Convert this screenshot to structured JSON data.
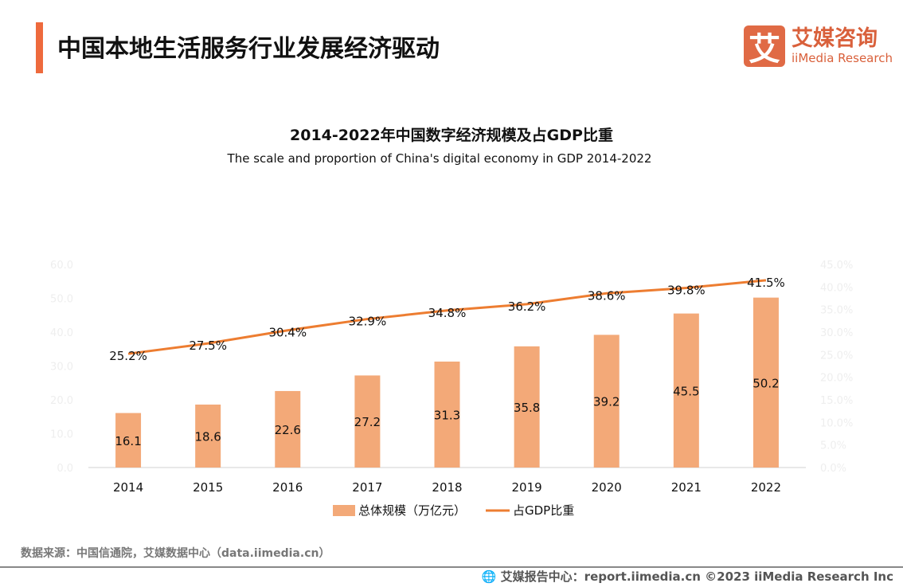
{
  "header": {
    "title": "中国本地生活服务行业发展经济驱动",
    "logo_cn": "艾媒咨询",
    "logo_en": "iiMedia Research",
    "logo_mark": "艾"
  },
  "chart_data": {
    "type": "bar+line",
    "title": "2014-2022年中国数字经济规模及占GDP比重",
    "subtitle": "The scale and proportion of China's digital economy in GDP  2014-2022",
    "categories": [
      "2014",
      "2015",
      "2016",
      "2017",
      "2018",
      "2019",
      "2020",
      "2021",
      "2022"
    ],
    "series": [
      {
        "name": "总体规模（万亿元）",
        "type": "bar",
        "axis": "left",
        "color": "#f3a978",
        "values": [
          16.1,
          18.6,
          22.6,
          27.2,
          31.3,
          35.8,
          39.2,
          45.5,
          50.2
        ],
        "labels": [
          "16.1",
          "18.6",
          "22.6",
          "27.2",
          "31.3",
          "35.8",
          "39.2",
          "45.5",
          "50.2"
        ]
      },
      {
        "name": "占GDP比重",
        "type": "line",
        "axis": "right",
        "color": "#ed7d31",
        "values": [
          25.2,
          27.5,
          30.4,
          32.9,
          34.8,
          36.2,
          38.6,
          39.8,
          41.5
        ],
        "labels": [
          "25.2%",
          "27.5%",
          "30.4%",
          "32.9%",
          "34.8%",
          "36.2%",
          "38.6%",
          "39.8%",
          "41.5%"
        ]
      }
    ],
    "ylim": [
      0,
      60
    ],
    "y_ticks": [
      "0.0",
      "10.0",
      "20.0",
      "30.0",
      "40.0",
      "50.0",
      "60.0"
    ],
    "y2lim": [
      0,
      45
    ],
    "y2_ticks": [
      "0.0%",
      "5.0%",
      "10.0%",
      "15.0%",
      "20.0%",
      "25.0%",
      "30.0%",
      "35.0%",
      "40.0%",
      "45.0%"
    ],
    "grid": false,
    "legend": "bottom"
  },
  "footer": {
    "source": "数据来源：中国信通院，艾媒数据中心（data.iimedia.cn）",
    "copyright": "艾媒报告中心：report.iimedia.cn   ©2023  iiMedia Research  Inc"
  }
}
